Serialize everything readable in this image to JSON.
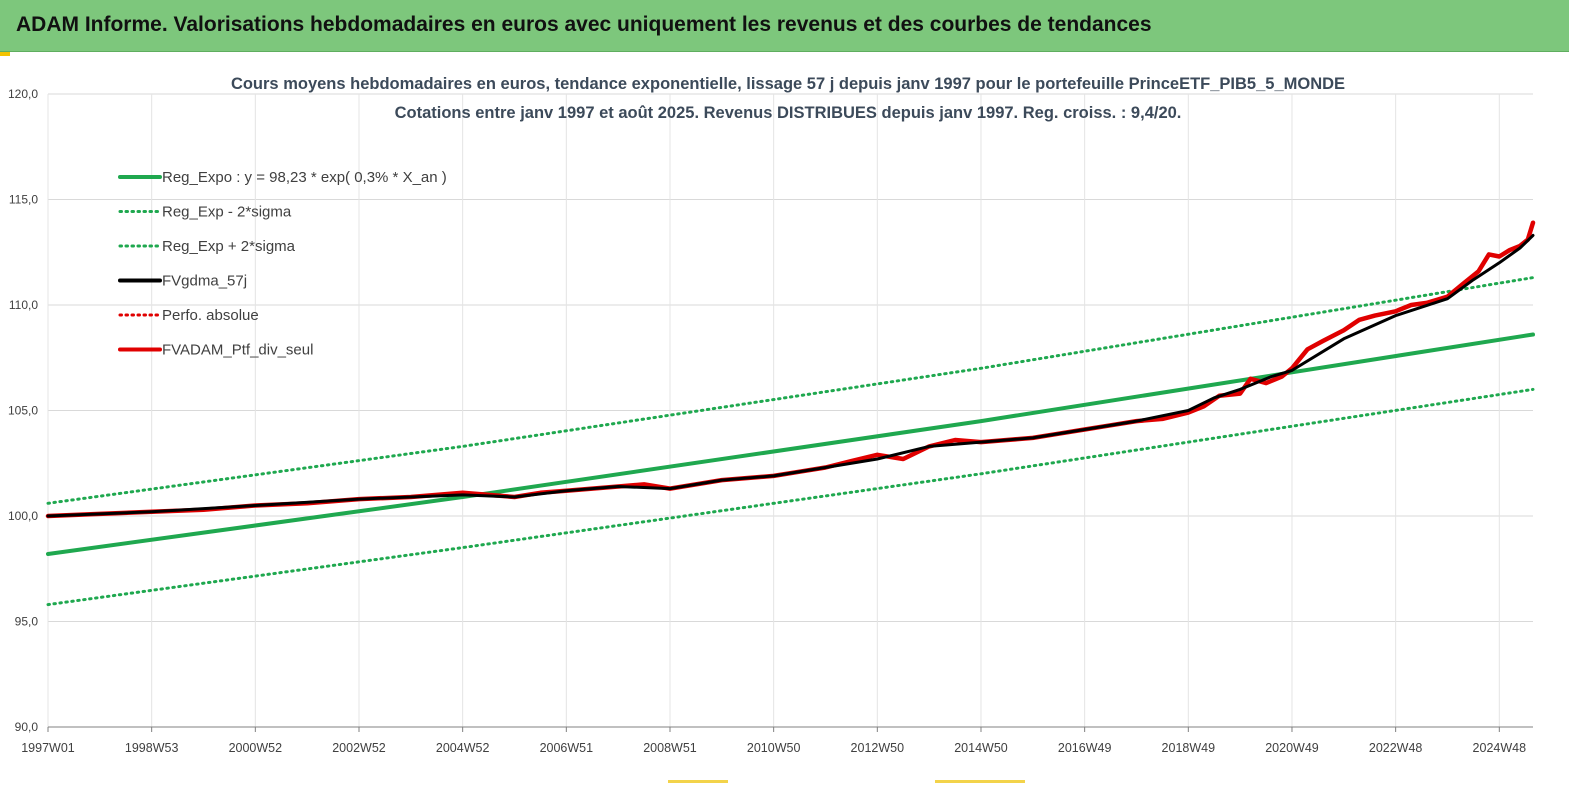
{
  "page": {
    "banner_title": "ADAM Informe. Valorisations hebdomadaires en euros avec uniquement les revenus et des courbes de tendances"
  },
  "chart_data": {
    "type": "line",
    "title_line1": "Cours moyens hebdomadaires  en euros, tendance exponentielle, lissage 57 j depuis janv 1997 pour le portefeuille PrinceETF_PIB5_5_MONDE",
    "title_line2": "Cotations  entre janv 1997 et août 2025. Revenus DISTRIBUES depuis janv 1997. Reg. croiss. : 9,4/20.",
    "xlim": [
      1997.0,
      2025.65
    ],
    "ylim": [
      90,
      120
    ],
    "y_ticks": [
      {
        "value": 90,
        "label": "90,0"
      },
      {
        "value": 95,
        "label": "95,0"
      },
      {
        "value": 100,
        "label": "100,0"
      },
      {
        "value": 105,
        "label": "105,0"
      },
      {
        "value": 110,
        "label": "110,0"
      },
      {
        "value": 115,
        "label": "115,0"
      },
      {
        "value": 120,
        "label": "120,0"
      }
    ],
    "x_ticks": [
      {
        "value": 1997.0,
        "label": "1997W01"
      },
      {
        "value": 1999.0,
        "label": "1998W53"
      },
      {
        "value": 2001.0,
        "label": "2000W52"
      },
      {
        "value": 2003.0,
        "label": "2002W52"
      },
      {
        "value": 2005.0,
        "label": "2004W52"
      },
      {
        "value": 2007.0,
        "label": "2006W51"
      },
      {
        "value": 2009.0,
        "label": "2008W51"
      },
      {
        "value": 2011.0,
        "label": "2010W50"
      },
      {
        "value": 2013.0,
        "label": "2012W50"
      },
      {
        "value": 2015.0,
        "label": "2014W50"
      },
      {
        "value": 2017.0,
        "label": "2016W49"
      },
      {
        "value": 2019.0,
        "label": "2018W49"
      },
      {
        "value": 2021.0,
        "label": "2020W49"
      },
      {
        "value": 2023.0,
        "label": "2022W48"
      },
      {
        "value": 2025.0,
        "label": "2024W48"
      }
    ],
    "grid": true,
    "legend_position": "top-left",
    "series": [
      {
        "name": "Reg_Expo : y = 98,23 * exp( 0,3% *  X_an )",
        "color": "#1fa84f",
        "style": "solid",
        "x": [
          1997.0,
          2005.0,
          2015.0,
          2025.65
        ],
        "y": [
          98.2,
          100.9,
          104.5,
          108.6
        ]
      },
      {
        "name": "Reg_Exp - 2*sigma",
        "color": "#1fa84f",
        "style": "dotted",
        "x": [
          1997.0,
          2005.0,
          2015.0,
          2025.65
        ],
        "y": [
          95.8,
          98.5,
          102.0,
          106.0
        ]
      },
      {
        "name": "Reg_Exp + 2*sigma",
        "color": "#1fa84f",
        "style": "dotted",
        "x": [
          1997.0,
          2005.0,
          2015.0,
          2025.65
        ],
        "y": [
          100.6,
          103.3,
          107.0,
          111.3
        ]
      },
      {
        "name": "FVgdma_57j",
        "color": "#000000",
        "style": "solid",
        "x": [
          1997.0,
          1999.0,
          2001.0,
          2003.0,
          2005.0,
          2006.0,
          2007.0,
          2008.0,
          2009.0,
          2010.0,
          2011.0,
          2012.0,
          2013.0,
          2014.0,
          2015.0,
          2016.0,
          2017.0,
          2018.0,
          2019.0,
          2019.5,
          2020.0,
          2020.6,
          2021.0,
          2022.0,
          2023.0,
          2024.0,
          2024.5,
          2025.0,
          2025.4,
          2025.65
        ],
        "y": [
          100.0,
          100.2,
          100.5,
          100.8,
          101.0,
          100.9,
          101.2,
          101.4,
          101.3,
          101.7,
          101.9,
          102.3,
          102.7,
          103.3,
          103.5,
          103.7,
          104.1,
          104.5,
          105.0,
          105.6,
          106.0,
          106.6,
          106.9,
          108.4,
          109.5,
          110.3,
          111.2,
          112.0,
          112.7,
          113.3
        ]
      },
      {
        "name": "Perfo. absolue",
        "color": "#e00000",
        "style": "dotted",
        "x": [],
        "y": []
      },
      {
        "name": "FVADAM_Ptf_div_seul",
        "color": "#e00000",
        "style": "solid",
        "x": [
          1997.0,
          1998.0,
          1999.0,
          2000.0,
          2001.0,
          2002.0,
          2003.0,
          2004.0,
          2005.0,
          2005.5,
          2006.0,
          2006.5,
          2007.0,
          2007.5,
          2008.0,
          2008.5,
          2009.0,
          2009.5,
          2010.0,
          2010.5,
          2011.0,
          2011.5,
          2012.0,
          2012.5,
          2013.0,
          2013.5,
          2014.0,
          2014.5,
          2015.0,
          2015.5,
          2016.0,
          2016.5,
          2017.0,
          2017.5,
          2018.0,
          2018.5,
          2019.0,
          2019.3,
          2019.6,
          2020.0,
          2020.2,
          2020.5,
          2020.8,
          2021.0,
          2021.3,
          2021.6,
          2022.0,
          2022.3,
          2022.6,
          2023.0,
          2023.3,
          2023.6,
          2024.0,
          2024.3,
          2024.6,
          2024.8,
          2025.0,
          2025.2,
          2025.4,
          2025.55,
          2025.65
        ],
        "y": [
          100.0,
          100.1,
          100.2,
          100.3,
          100.5,
          100.6,
          100.8,
          100.9,
          101.1,
          101.0,
          100.9,
          101.1,
          101.2,
          101.3,
          101.4,
          101.5,
          101.3,
          101.5,
          101.7,
          101.8,
          101.9,
          102.1,
          102.3,
          102.6,
          102.9,
          102.7,
          103.3,
          103.6,
          103.5,
          103.6,
          103.7,
          103.9,
          104.1,
          104.3,
          104.5,
          104.6,
          104.9,
          105.2,
          105.7,
          105.8,
          106.5,
          106.3,
          106.6,
          107.0,
          107.9,
          108.3,
          108.8,
          109.3,
          109.5,
          109.7,
          110.0,
          110.1,
          110.4,
          111.0,
          111.6,
          112.4,
          112.3,
          112.6,
          112.8,
          113.1,
          113.9
        ]
      }
    ]
  }
}
